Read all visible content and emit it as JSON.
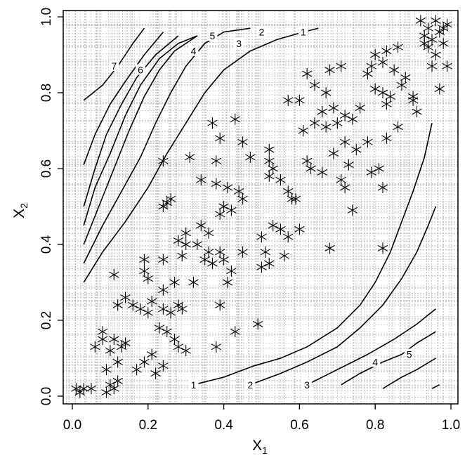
{
  "chart_data": {
    "type": "scatter",
    "title": "",
    "xlabel": {
      "main": "X",
      "sub": "1"
    },
    "ylabel": {
      "main": "X",
      "sub": "2"
    },
    "xlim": [
      0.0,
      1.0
    ],
    "ylim": [
      0.0,
      1.0
    ],
    "xticks": [
      "0.0",
      "0.2",
      "0.4",
      "0.6",
      "0.8",
      "1.0"
    ],
    "yticks": [
      "0.0",
      "0.2",
      "0.4",
      "0.6",
      "0.8",
      "1.0"
    ],
    "grid": "fine grey dotted lines at irregular positions",
    "marker": "asterisk",
    "colors": {
      "points": "#000000",
      "contours": "#000000",
      "grid": "#bdbdbd"
    },
    "points": [
      [
        0.01,
        0.02
      ],
      [
        0.02,
        0.01
      ],
      [
        0.03,
        0.02
      ],
      [
        0.05,
        0.02
      ],
      [
        0.06,
        0.13
      ],
      [
        0.08,
        0.15
      ],
      [
        0.09,
        0.01
      ],
      [
        0.1,
        0.03
      ],
      [
        0.11,
        0.02
      ],
      [
        0.12,
        0.04
      ],
      [
        0.08,
        0.17
      ],
      [
        0.1,
        0.12
      ],
      [
        0.11,
        0.15
      ],
      [
        0.09,
        0.07
      ],
      [
        0.12,
        0.09
      ],
      [
        0.13,
        0.13
      ],
      [
        0.14,
        0.14
      ],
      [
        0.17,
        0.07
      ],
      [
        0.19,
        0.09
      ],
      [
        0.21,
        0.11
      ],
      [
        0.22,
        0.06
      ],
      [
        0.24,
        0.08
      ],
      [
        0.23,
        0.18
      ],
      [
        0.25,
        0.17
      ],
      [
        0.27,
        0.15
      ],
      [
        0.28,
        0.13
      ],
      [
        0.3,
        0.12
      ],
      [
        0.38,
        0.13
      ],
      [
        0.43,
        0.17
      ],
      [
        0.49,
        0.19
      ],
      [
        0.12,
        0.24
      ],
      [
        0.14,
        0.26
      ],
      [
        0.16,
        0.24
      ],
      [
        0.18,
        0.23
      ],
      [
        0.2,
        0.22
      ],
      [
        0.21,
        0.25
      ],
      [
        0.24,
        0.23
      ],
      [
        0.26,
        0.22
      ],
      [
        0.28,
        0.24
      ],
      [
        0.29,
        0.23
      ],
      [
        0.11,
        0.32
      ],
      [
        0.19,
        0.33
      ],
      [
        0.2,
        0.31
      ],
      [
        0.19,
        0.36
      ],
      [
        0.24,
        0.28
      ],
      [
        0.24,
        0.36
      ],
      [
        0.27,
        0.3
      ],
      [
        0.29,
        0.37
      ],
      [
        0.3,
        0.4
      ],
      [
        0.32,
        0.3
      ],
      [
        0.28,
        0.41
      ],
      [
        0.3,
        0.43
      ],
      [
        0.33,
        0.4
      ],
      [
        0.35,
        0.36
      ],
      [
        0.36,
        0.38
      ],
      [
        0.37,
        0.35
      ],
      [
        0.39,
        0.38
      ],
      [
        0.4,
        0.36
      ],
      [
        0.41,
        0.3
      ],
      [
        0.42,
        0.33
      ],
      [
        0.39,
        0.24
      ],
      [
        0.45,
        0.38
      ],
      [
        0.34,
        0.45
      ],
      [
        0.36,
        0.43
      ],
      [
        0.39,
        0.48
      ],
      [
        0.4,
        0.5
      ],
      [
        0.42,
        0.49
      ],
      [
        0.41,
        0.55
      ],
      [
        0.44,
        0.54
      ],
      [
        0.45,
        0.52
      ],
      [
        0.24,
        0.5
      ],
      [
        0.25,
        0.51
      ],
      [
        0.26,
        0.52
      ],
      [
        0.34,
        0.57
      ],
      [
        0.38,
        0.56
      ],
      [
        0.38,
        0.62
      ],
      [
        0.24,
        0.62
      ],
      [
        0.31,
        0.63
      ],
      [
        0.37,
        0.72
      ],
      [
        0.39,
        0.68
      ],
      [
        0.43,
        0.73
      ],
      [
        0.45,
        0.67
      ],
      [
        0.47,
        0.63
      ],
      [
        0.52,
        0.65
      ],
      [
        0.52,
        0.62
      ],
      [
        0.53,
        0.6
      ],
      [
        0.52,
        0.58
      ],
      [
        0.55,
        0.57
      ],
      [
        0.57,
        0.54
      ],
      [
        0.58,
        0.52
      ],
      [
        0.5,
        0.42
      ],
      [
        0.53,
        0.45
      ],
      [
        0.55,
        0.44
      ],
      [
        0.57,
        0.42
      ],
      [
        0.51,
        0.38
      ],
      [
        0.56,
        0.37
      ],
      [
        0.5,
        0.34
      ],
      [
        0.52,
        0.35
      ],
      [
        0.6,
        0.44
      ],
      [
        0.59,
        0.52
      ],
      [
        0.62,
        0.62
      ],
      [
        0.63,
        0.6
      ],
      [
        0.61,
        0.7
      ],
      [
        0.64,
        0.72
      ],
      [
        0.66,
        0.75
      ],
      [
        0.67,
        0.71
      ],
      [
        0.7,
        0.72
      ],
      [
        0.72,
        0.67
      ],
      [
        0.73,
        0.61
      ],
      [
        0.75,
        0.65
      ],
      [
        0.71,
        0.57
      ],
      [
        0.72,
        0.55
      ],
      [
        0.74,
        0.49
      ],
      [
        0.68,
        0.39
      ],
      [
        0.82,
        0.39
      ],
      [
        0.66,
        0.59
      ],
      [
        0.69,
        0.64
      ],
      [
        0.78,
        0.67
      ],
      [
        0.79,
        0.59
      ],
      [
        0.81,
        0.6
      ],
      [
        0.82,
        0.55
      ],
      [
        0.83,
        0.68
      ],
      [
        0.86,
        0.71
      ],
      [
        0.9,
        0.78
      ],
      [
        0.9,
        0.79
      ],
      [
        0.83,
        0.77
      ],
      [
        0.82,
        0.8
      ],
      [
        0.8,
        0.81
      ],
      [
        0.78,
        0.85
      ],
      [
        0.79,
        0.87
      ],
      [
        0.8,
        0.9
      ],
      [
        0.82,
        0.88
      ],
      [
        0.83,
        0.91
      ],
      [
        0.85,
        0.86
      ],
      [
        0.86,
        0.92
      ],
      [
        0.84,
        0.79
      ],
      [
        0.87,
        0.82
      ],
      [
        0.88,
        0.84
      ],
      [
        0.91,
        0.75
      ],
      [
        0.93,
        0.95
      ],
      [
        0.94,
        0.97
      ],
      [
        0.95,
        0.94
      ],
      [
        0.96,
        0.99
      ],
      [
        0.97,
        0.96
      ],
      [
        0.98,
        0.93
      ],
      [
        0.99,
        0.98
      ],
      [
        0.98,
        0.97
      ],
      [
        0.96,
        0.9
      ],
      [
        0.95,
        0.87
      ],
      [
        0.97,
        0.81
      ],
      [
        0.99,
        0.87
      ],
      [
        0.92,
        0.99
      ],
      [
        0.93,
        0.93
      ],
      [
        0.94,
        0.92
      ],
      [
        0.62,
        0.85
      ],
      [
        0.64,
        0.82
      ],
      [
        0.6,
        0.78
      ],
      [
        0.57,
        0.78
      ],
      [
        0.67,
        0.8
      ],
      [
        0.68,
        0.86
      ],
      [
        0.71,
        0.87
      ],
      [
        0.69,
        0.76
      ],
      [
        0.72,
        0.74
      ],
      [
        0.74,
        0.73
      ],
      [
        0.76,
        0.76
      ]
    ],
    "contours": [
      {
        "label": "1",
        "points": [
          [
            0.32,
            0.03
          ],
          [
            0.4,
            0.05
          ],
          [
            0.48,
            0.08
          ],
          [
            0.55,
            0.1
          ],
          [
            0.62,
            0.13
          ],
          [
            0.7,
            0.18
          ],
          [
            0.76,
            0.24
          ],
          [
            0.8,
            0.3
          ],
          [
            0.84,
            0.38
          ],
          [
            0.87,
            0.46
          ],
          [
            0.9,
            0.54
          ],
          [
            0.93,
            0.63
          ],
          [
            0.95,
            0.72
          ]
        ]
      },
      {
        "label": "2",
        "points": [
          [
            0.47,
            0.03
          ],
          [
            0.55,
            0.06
          ],
          [
            0.62,
            0.09
          ],
          [
            0.7,
            0.13
          ],
          [
            0.76,
            0.18
          ],
          [
            0.82,
            0.24
          ],
          [
            0.87,
            0.31
          ],
          [
            0.91,
            0.38
          ],
          [
            0.94,
            0.45
          ],
          [
            0.96,
            0.5
          ]
        ]
      },
      {
        "label": "3",
        "points": [
          [
            0.62,
            0.03
          ],
          [
            0.7,
            0.07
          ],
          [
            0.78,
            0.11
          ],
          [
            0.85,
            0.15
          ],
          [
            0.91,
            0.19
          ],
          [
            0.96,
            0.23
          ]
        ]
      },
      {
        "label": "4",
        "points": [
          [
            0.71,
            0.03
          ],
          [
            0.76,
            0.06
          ],
          [
            0.82,
            0.09
          ],
          [
            0.87,
            0.11
          ],
          [
            0.91,
            0.14
          ],
          [
            0.96,
            0.17
          ]
        ]
      },
      {
        "label": "5",
        "points": [
          [
            0.82,
            0.02
          ],
          [
            0.87,
            0.05
          ],
          [
            0.91,
            0.07
          ],
          [
            0.96,
            0.1
          ]
        ]
      },
      {
        "label": "",
        "points": [
          [
            0.95,
            0.02
          ],
          [
            0.97,
            0.03
          ]
        ]
      },
      {
        "label": "1",
        "points": [
          [
            0.03,
            0.3
          ],
          [
            0.08,
            0.38
          ],
          [
            0.14,
            0.46
          ],
          [
            0.2,
            0.55
          ],
          [
            0.25,
            0.64
          ],
          [
            0.3,
            0.72
          ],
          [
            0.35,
            0.8
          ],
          [
            0.4,
            0.86
          ],
          [
            0.47,
            0.91
          ],
          [
            0.54,
            0.94
          ],
          [
            0.61,
            0.96
          ],
          [
            0.65,
            0.97
          ]
        ]
      },
      {
        "label": "2",
        "points": [
          [
            0.03,
            0.35
          ],
          [
            0.08,
            0.45
          ],
          [
            0.13,
            0.54
          ],
          [
            0.18,
            0.63
          ],
          [
            0.22,
            0.72
          ],
          [
            0.26,
            0.8
          ],
          [
            0.3,
            0.87
          ],
          [
            0.35,
            0.93
          ],
          [
            0.4,
            0.96
          ],
          [
            0.47,
            0.97
          ]
        ]
      },
      {
        "label": "3",
        "points": [
          [
            0.03,
            0.4
          ],
          [
            0.07,
            0.5
          ],
          [
            0.11,
            0.6
          ],
          [
            0.15,
            0.7
          ],
          [
            0.19,
            0.79
          ],
          [
            0.23,
            0.86
          ],
          [
            0.27,
            0.91
          ],
          [
            0.33,
            0.95
          ]
        ]
      },
      {
        "label": "4",
        "points": [
          [
            0.03,
            0.45
          ],
          [
            0.06,
            0.55
          ],
          [
            0.1,
            0.64
          ],
          [
            0.14,
            0.74
          ],
          [
            0.18,
            0.82
          ],
          [
            0.23,
            0.89
          ],
          [
            0.28,
            0.93
          ],
          [
            0.33,
            0.95
          ]
        ]
      },
      {
        "label": "5",
        "points": [
          [
            0.03,
            0.5
          ],
          [
            0.06,
            0.6
          ],
          [
            0.09,
            0.69
          ],
          [
            0.13,
            0.77
          ],
          [
            0.17,
            0.84
          ],
          [
            0.22,
            0.9
          ],
          [
            0.28,
            0.95
          ]
        ]
      },
      {
        "label": "6",
        "points": [
          [
            0.03,
            0.61
          ],
          [
            0.06,
            0.69
          ],
          [
            0.1,
            0.77
          ],
          [
            0.14,
            0.83
          ],
          [
            0.19,
            0.9
          ],
          [
            0.24,
            0.96
          ]
        ]
      },
      {
        "label": "7",
        "points": [
          [
            0.03,
            0.78
          ],
          [
            0.08,
            0.82
          ],
          [
            0.12,
            0.87
          ],
          [
            0.16,
            0.93
          ],
          [
            0.19,
            0.97
          ]
        ]
      }
    ],
    "contour_label_positions": [
      {
        "label": "1",
        "at": [
          0.32,
          0.03
        ]
      },
      {
        "label": "2",
        "at": [
          0.47,
          0.03
        ]
      },
      {
        "label": "3",
        "at": [
          0.62,
          0.03
        ]
      },
      {
        "label": "4",
        "at": [
          0.8,
          0.09
        ]
      },
      {
        "label": "5",
        "at": [
          0.89,
          0.11
        ]
      },
      {
        "label": "1",
        "at": [
          0.61,
          0.96
        ]
      },
      {
        "label": "2",
        "at": [
          0.5,
          0.96
        ]
      },
      {
        "label": "3",
        "at": [
          0.44,
          0.93
        ]
      },
      {
        "label": "4",
        "at": [
          0.32,
          0.91
        ]
      },
      {
        "label": "5",
        "at": [
          0.37,
          0.95
        ]
      },
      {
        "label": "6",
        "at": [
          0.18,
          0.86
        ]
      },
      {
        "label": "7",
        "at": [
          0.11,
          0.87
        ]
      }
    ]
  }
}
